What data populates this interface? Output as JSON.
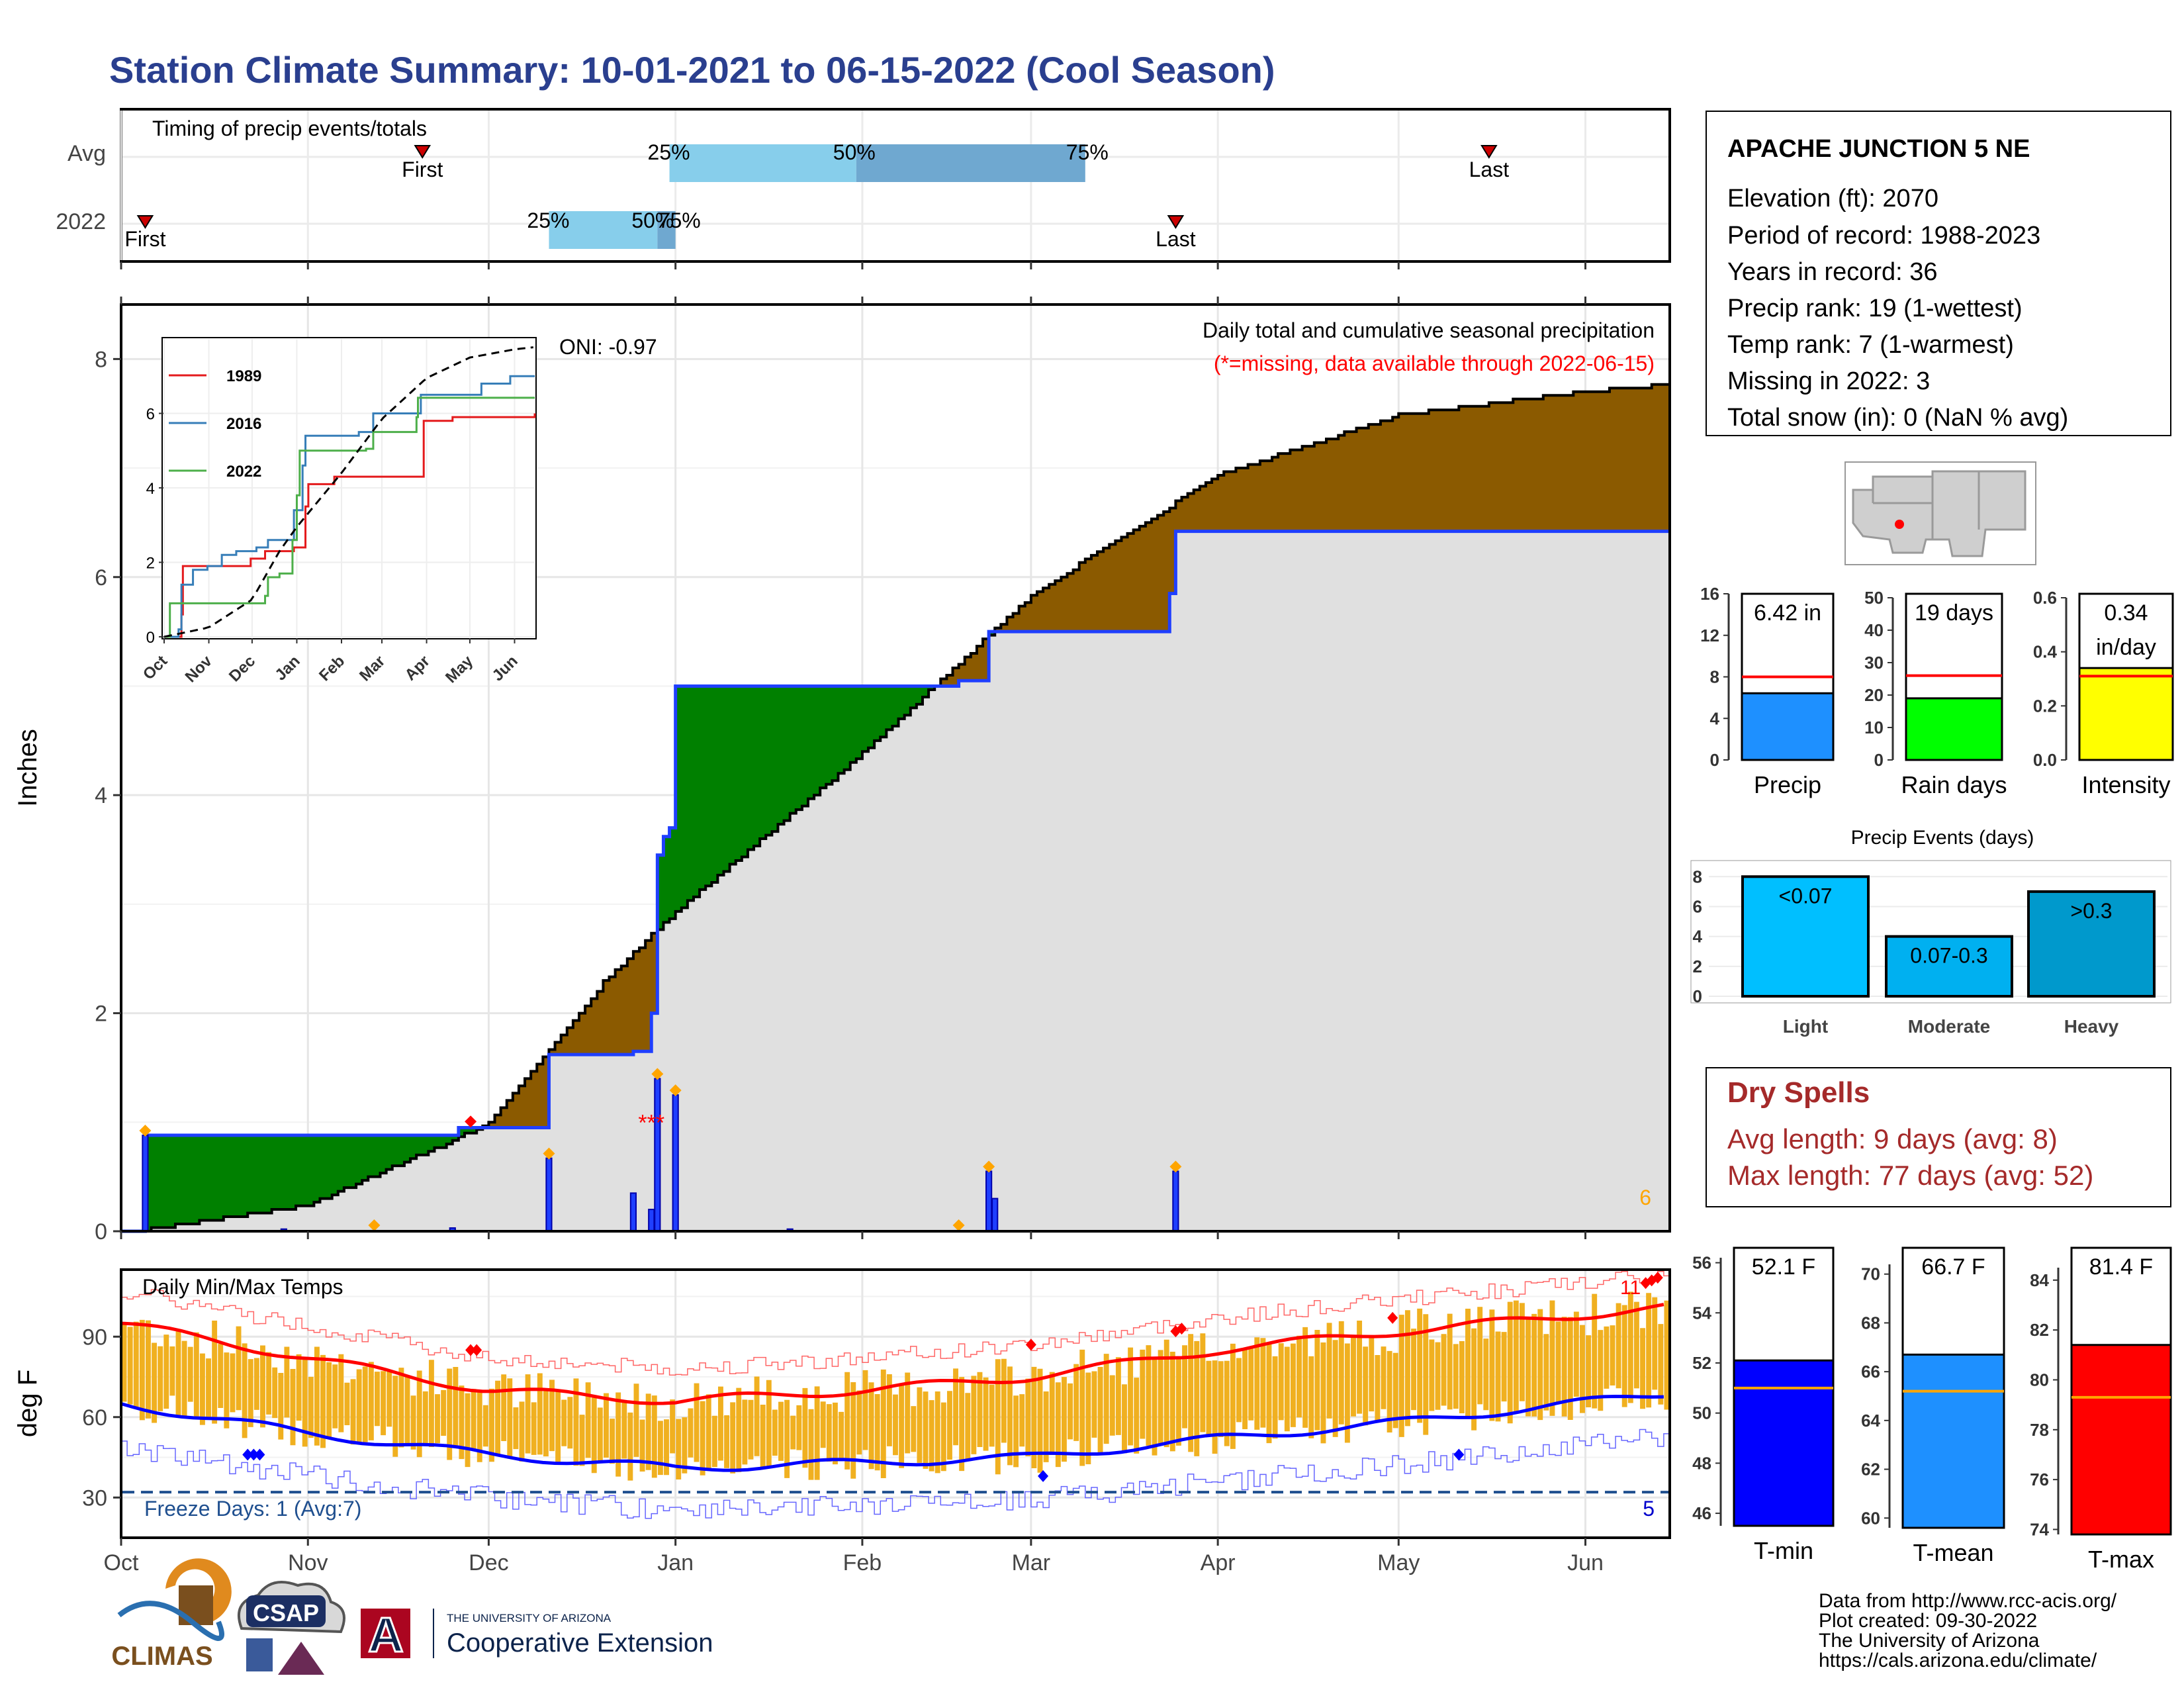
{
  "title": "Station Climate Summary: 10-01-2021 to 06-15-2022 (Cool Season)",
  "colors": {
    "title": "#2a3f8f",
    "wet": "#008000",
    "dry": "#8b5a00",
    "cumfill": "#e0e0e0",
    "precipBar": "#1f3fff",
    "tempBar": "#f0b020",
    "tmax": "#ff0000",
    "tmin": "#0000ff",
    "q1": "#87ceeb",
    "q2": "#6fa8d0",
    "dry_spells": "#a52a2a"
  },
  "timing": {
    "title": "Timing of precip events/totals",
    "rows": [
      "Avg",
      "2022"
    ],
    "avg": {
      "first_label": "First",
      "last_label": "Last",
      "q25": "25%",
      "q50": "50%",
      "q75": "75%"
    },
    "y2022": {
      "first_label": "First",
      "last_label": "Last",
      "q25": "25%",
      "q50": "50%",
      "q75": "75%"
    }
  },
  "station": {
    "name": "APACHE JUNCTION 5 NE",
    "lines": [
      "Elevation (ft): 2070",
      "Period of record: 1988-2023",
      "Years in record: 36",
      "Precip rank: 19 (1-wettest)",
      "Temp rank: 7 (1-warmest)",
      "Missing in 2022: 3",
      "Total snow (in): 0 (NaN % avg)"
    ]
  },
  "precip_panel": {
    "ylabel": "Inches",
    "yticks": [
      "0",
      "2",
      "4",
      "6",
      "8"
    ],
    "months": [
      "Oct",
      "Nov",
      "Dec",
      "Jan",
      "Feb",
      "Mar",
      "Apr",
      "May",
      "Jun"
    ],
    "annotation1": "Daily total and cumulative seasonal precipitation",
    "annotation2": "(*=missing, data available through 2022-06-15)",
    "oni": "ONI: -0.97",
    "count_label": "6"
  },
  "inset": {
    "legend": [
      "1989",
      "2016",
      "2022"
    ],
    "yticks": [
      "0",
      "2",
      "4",
      "6"
    ],
    "months": [
      "Oct",
      "Nov",
      "Dec",
      "Jan",
      "Feb",
      "Mar",
      "Apr",
      "May",
      "Jun"
    ]
  },
  "temp_panel": {
    "title": "Daily Min/Max Temps",
    "ylabel": "deg F",
    "yticks": [
      "30",
      "60",
      "90"
    ],
    "freeze": "Freeze Days: 1 (Avg:7)",
    "freeze_count": "5",
    "hot_count": "11",
    "months": [
      "Oct",
      "Nov",
      "Dec",
      "Jan",
      "Feb",
      "Mar",
      "Apr",
      "May",
      "Jun"
    ]
  },
  "mini_precip": {
    "label": "Precip",
    "value_text": "6.42 in",
    "yticks": [
      "0",
      "4",
      "8",
      "12",
      "16"
    ]
  },
  "mini_raindays": {
    "label": "Rain days",
    "value_text": "19 days",
    "yticks": [
      "0",
      "10",
      "20",
      "30",
      "40",
      "50"
    ]
  },
  "mini_intensity": {
    "label": "Intensity",
    "value_text1": "0.34",
    "value_text2": "in/day",
    "yticks": [
      "0.0",
      "0.2",
      "0.4",
      "0.6"
    ]
  },
  "events": {
    "title": "Precip Events (days)",
    "yticks": [
      "0",
      "2",
      "4",
      "6",
      "8"
    ],
    "bars": [
      {
        "cat": "Light",
        "label": "<0.07",
        "value": 8
      },
      {
        "cat": "Moderate",
        "label": "0.07-0.3",
        "value": 4
      },
      {
        "cat": "Heavy",
        "label": ">0.3",
        "value": 7
      }
    ]
  },
  "dry_spells": {
    "title": "Dry Spells",
    "line1": "Avg length: 9 days (avg: 8)",
    "line2": "Max length: 77 days (avg: 52)"
  },
  "tmin_box": {
    "label": "T-min",
    "value_text": "52.1 F",
    "yticks": [
      "46",
      "48",
      "50",
      "52",
      "54",
      "56"
    ]
  },
  "tmean_box": {
    "label": "T-mean",
    "value_text": "66.7 F",
    "yticks": [
      "60",
      "62",
      "64",
      "66",
      "68",
      "70"
    ]
  },
  "tmax_box": {
    "label": "T-max",
    "value_text": "81.4 F",
    "yticks": [
      "74",
      "76",
      "78",
      "80",
      "82",
      "84"
    ]
  },
  "credits": {
    "lines": [
      "Data from http://www.rcc-acis.org/",
      "Plot created: 09-30-2022",
      "The University of Arizona",
      "https://cals.arizona.edu/climate/"
    ]
  },
  "logos": {
    "climas": "CLIMAS",
    "csap": "CSAP",
    "ua_small": "THE UNIVERSITY OF ARIZONA",
    "ua_big": "Cooperative Extension"
  },
  "chart_data": {
    "type": "area",
    "x_start": "2021-10-01",
    "x_end": "2022-06-15",
    "ylim": [
      0,
      8.5
    ],
    "cumulative_2022": [
      {
        "date": "2021-10-01",
        "value": 0.0
      },
      {
        "date": "2021-10-05",
        "value": 0.88
      },
      {
        "date": "2021-10-25",
        "value": 0.88
      },
      {
        "date": "2021-11-26",
        "value": 0.95
      },
      {
        "date": "2021-12-10",
        "value": 0.95
      },
      {
        "date": "2021-12-11",
        "value": 1.62
      },
      {
        "date": "2021-12-24",
        "value": 1.62
      },
      {
        "date": "2021-12-25",
        "value": 1.65
      },
      {
        "date": "2021-12-28",
        "value": 2.0
      },
      {
        "date": "2021-12-29",
        "value": 3.45
      },
      {
        "date": "2021-12-30",
        "value": 3.62
      },
      {
        "date": "2021-12-31",
        "value": 3.7
      },
      {
        "date": "2022-01-01",
        "value": 5.0
      },
      {
        "date": "2022-02-17",
        "value": 5.05
      },
      {
        "date": "2022-02-22",
        "value": 5.5
      },
      {
        "date": "2022-03-24",
        "value": 5.85
      },
      {
        "date": "2022-03-25",
        "value": 6.42
      },
      {
        "date": "2022-06-15",
        "value": 6.42
      }
    ],
    "cumulative_avg": [
      {
        "date": "2021-10-01",
        "value": 0.0
      },
      {
        "date": "2021-11-01",
        "value": 0.25
      },
      {
        "date": "2021-12-01",
        "value": 1.0
      },
      {
        "date": "2021-12-20",
        "value": 2.3
      },
      {
        "date": "2022-01-01",
        "value": 2.95
      },
      {
        "date": "2022-02-01",
        "value": 4.4
      },
      {
        "date": "2022-03-01",
        "value": 5.85
      },
      {
        "date": "2022-04-01",
        "value": 6.95
      },
      {
        "date": "2022-05-01",
        "value": 7.5
      },
      {
        "date": "2022-06-01",
        "value": 7.72
      },
      {
        "date": "2022-06-15",
        "value": 7.78
      }
    ],
    "daily_2022": [
      {
        "date": "2021-10-05",
        "value": 0.88
      },
      {
        "date": "2021-10-28",
        "value": 0.02
      },
      {
        "date": "2021-11-25",
        "value": 0.03
      },
      {
        "date": "2021-12-11",
        "value": 0.67
      },
      {
        "date": "2021-12-25",
        "value": 0.35
      },
      {
        "date": "2021-12-28",
        "value": 0.2
      },
      {
        "date": "2021-12-29",
        "value": 1.4
      },
      {
        "date": "2022-01-01",
        "value": 1.25
      },
      {
        "date": "2022-01-20",
        "value": 0.02
      },
      {
        "date": "2022-02-22",
        "value": 0.55
      },
      {
        "date": "2022-02-23",
        "value": 0.3
      },
      {
        "date": "2022-03-25",
        "value": 0.55
      }
    ],
    "temps_2022_smoothed": {
      "tmax_avg": [
        {
          "date": "2021-10-01",
          "value": 95
        },
        {
          "date": "2021-11-01",
          "value": 82
        },
        {
          "date": "2021-12-01",
          "value": 70
        },
        {
          "date": "2022-01-01",
          "value": 66
        },
        {
          "date": "2022-02-01",
          "value": 70
        },
        {
          "date": "2022-03-01",
          "value": 75
        },
        {
          "date": "2022-04-01",
          "value": 85
        },
        {
          "date": "2022-05-01",
          "value": 92
        },
        {
          "date": "2022-06-15",
          "value": 101
        }
      ],
      "tmin_avg": [
        {
          "date": "2021-10-01",
          "value": 65
        },
        {
          "date": "2021-11-01",
          "value": 54
        },
        {
          "date": "2021-12-01",
          "value": 46
        },
        {
          "date": "2022-01-01",
          "value": 41
        },
        {
          "date": "2022-02-01",
          "value": 43
        },
        {
          "date": "2022-03-01",
          "value": 45
        },
        {
          "date": "2022-04-01",
          "value": 52
        },
        {
          "date": "2022-05-01",
          "value": 58
        },
        {
          "date": "2022-06-15",
          "value": 69
        }
      ]
    },
    "precip_events": {
      "Light": 8,
      "Moderate": 4,
      "Heavy": 7
    },
    "season_totals": {
      "precip_in": 6.42,
      "precip_avg": 8.0,
      "rain_days": 19,
      "rain_days_avg": 26,
      "intensity": 0.34,
      "intensity_avg": 0.31,
      "tmin": 52.1,
      "tmin_avg": 51.0,
      "tmean": 66.7,
      "tmean_avg": 65.2,
      "tmax": 81.4,
      "tmax_avg": 79.3
    }
  }
}
